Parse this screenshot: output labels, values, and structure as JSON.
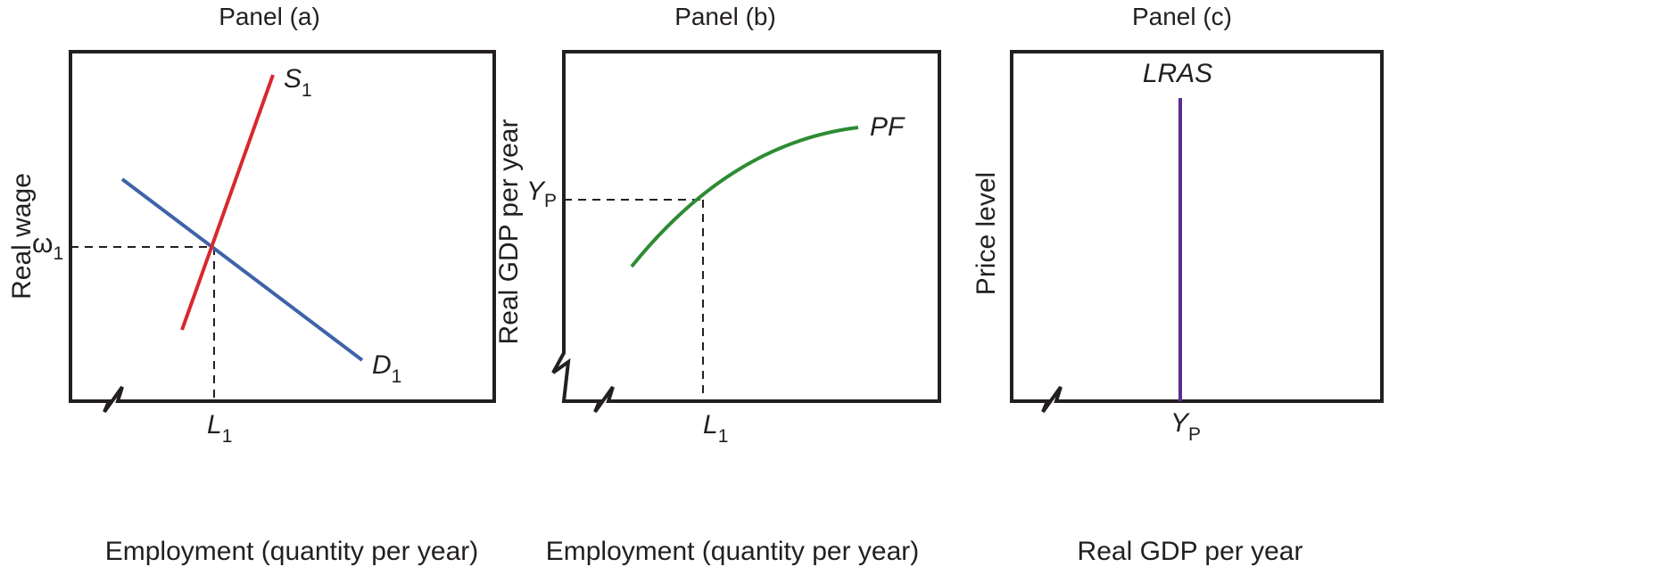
{
  "chart_data": [
    {
      "type": "line",
      "title": "Panel (a)",
      "xlabel": "Employment (quantity per year)",
      "ylabel": "Real wage",
      "series": [
        {
          "name": "S",
          "subscript": "1",
          "color": "#d7282f"
        },
        {
          "name": "D",
          "subscript": "1",
          "color": "#3f63a9"
        }
      ],
      "marks": {
        "x_tick": {
          "label": "L",
          "subscript": "1"
        },
        "y_tick": {
          "label": "ω",
          "subscript": "1"
        }
      }
    },
    {
      "type": "line",
      "title": "Panel (b)",
      "xlabel": "Employment (quantity per year)",
      "ylabel": "Real GDP per year",
      "series": [
        {
          "name": "PF",
          "subscript": "",
          "color": "#2e8b34"
        }
      ],
      "marks": {
        "x_tick": {
          "label": "L",
          "subscript": "1"
        },
        "y_tick": {
          "label": "Y",
          "subscript": "P"
        }
      }
    },
    {
      "type": "line",
      "title": "Panel (c)",
      "xlabel": "Real GDP per year",
      "ylabel": "Price level",
      "series": [
        {
          "name": "LRAS",
          "subscript": "",
          "color": "#5b2d8c"
        }
      ],
      "marks": {
        "x_tick": {
          "label": "Y",
          "subscript": "P"
        }
      }
    }
  ]
}
